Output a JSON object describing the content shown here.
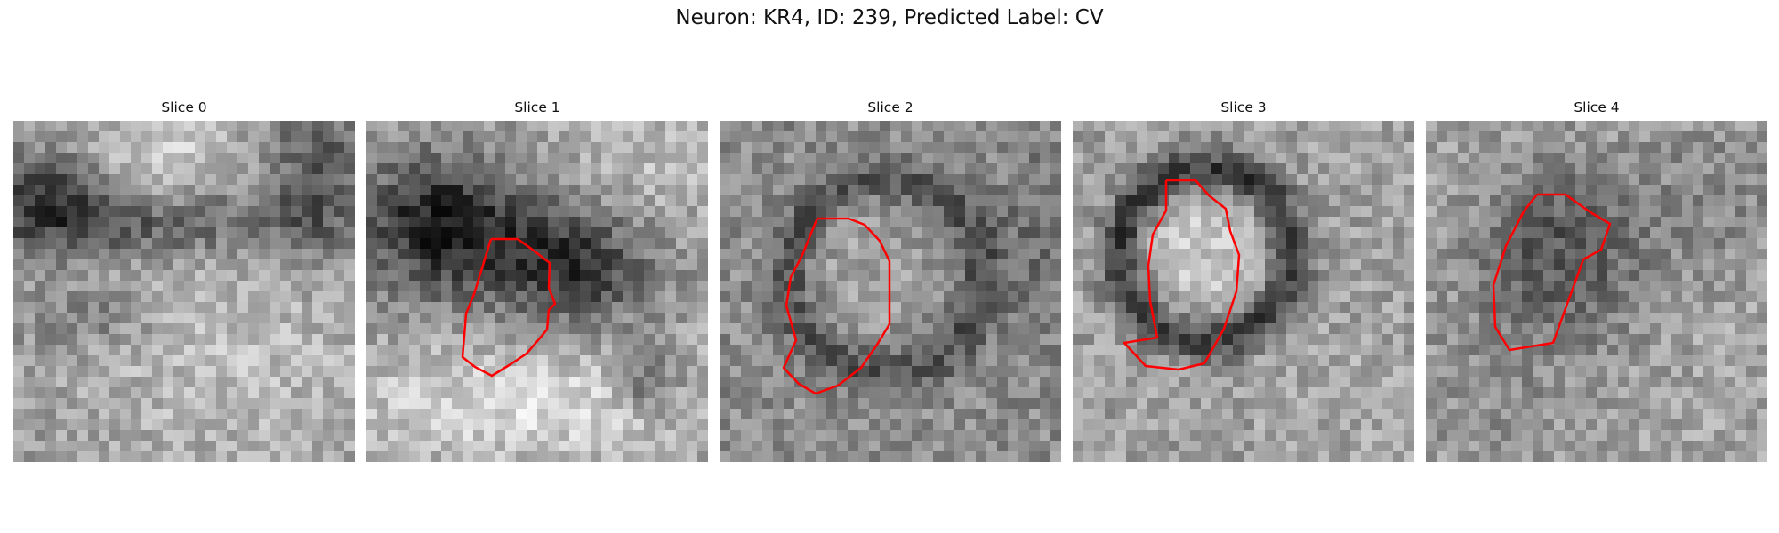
{
  "figure": {
    "title": "Neuron: KR4, ID: 239, Predicted Label: CV"
  },
  "style": {
    "contour_color": "#ff0000"
  },
  "slices": [
    {
      "title": "Slice 0",
      "has_contour": false
    },
    {
      "title": "Slice 1",
      "has_contour": true
    },
    {
      "title": "Slice 2",
      "has_contour": true
    },
    {
      "title": "Slice 3",
      "has_contour": true
    },
    {
      "title": "Slice 4",
      "has_contour": true
    }
  ]
}
